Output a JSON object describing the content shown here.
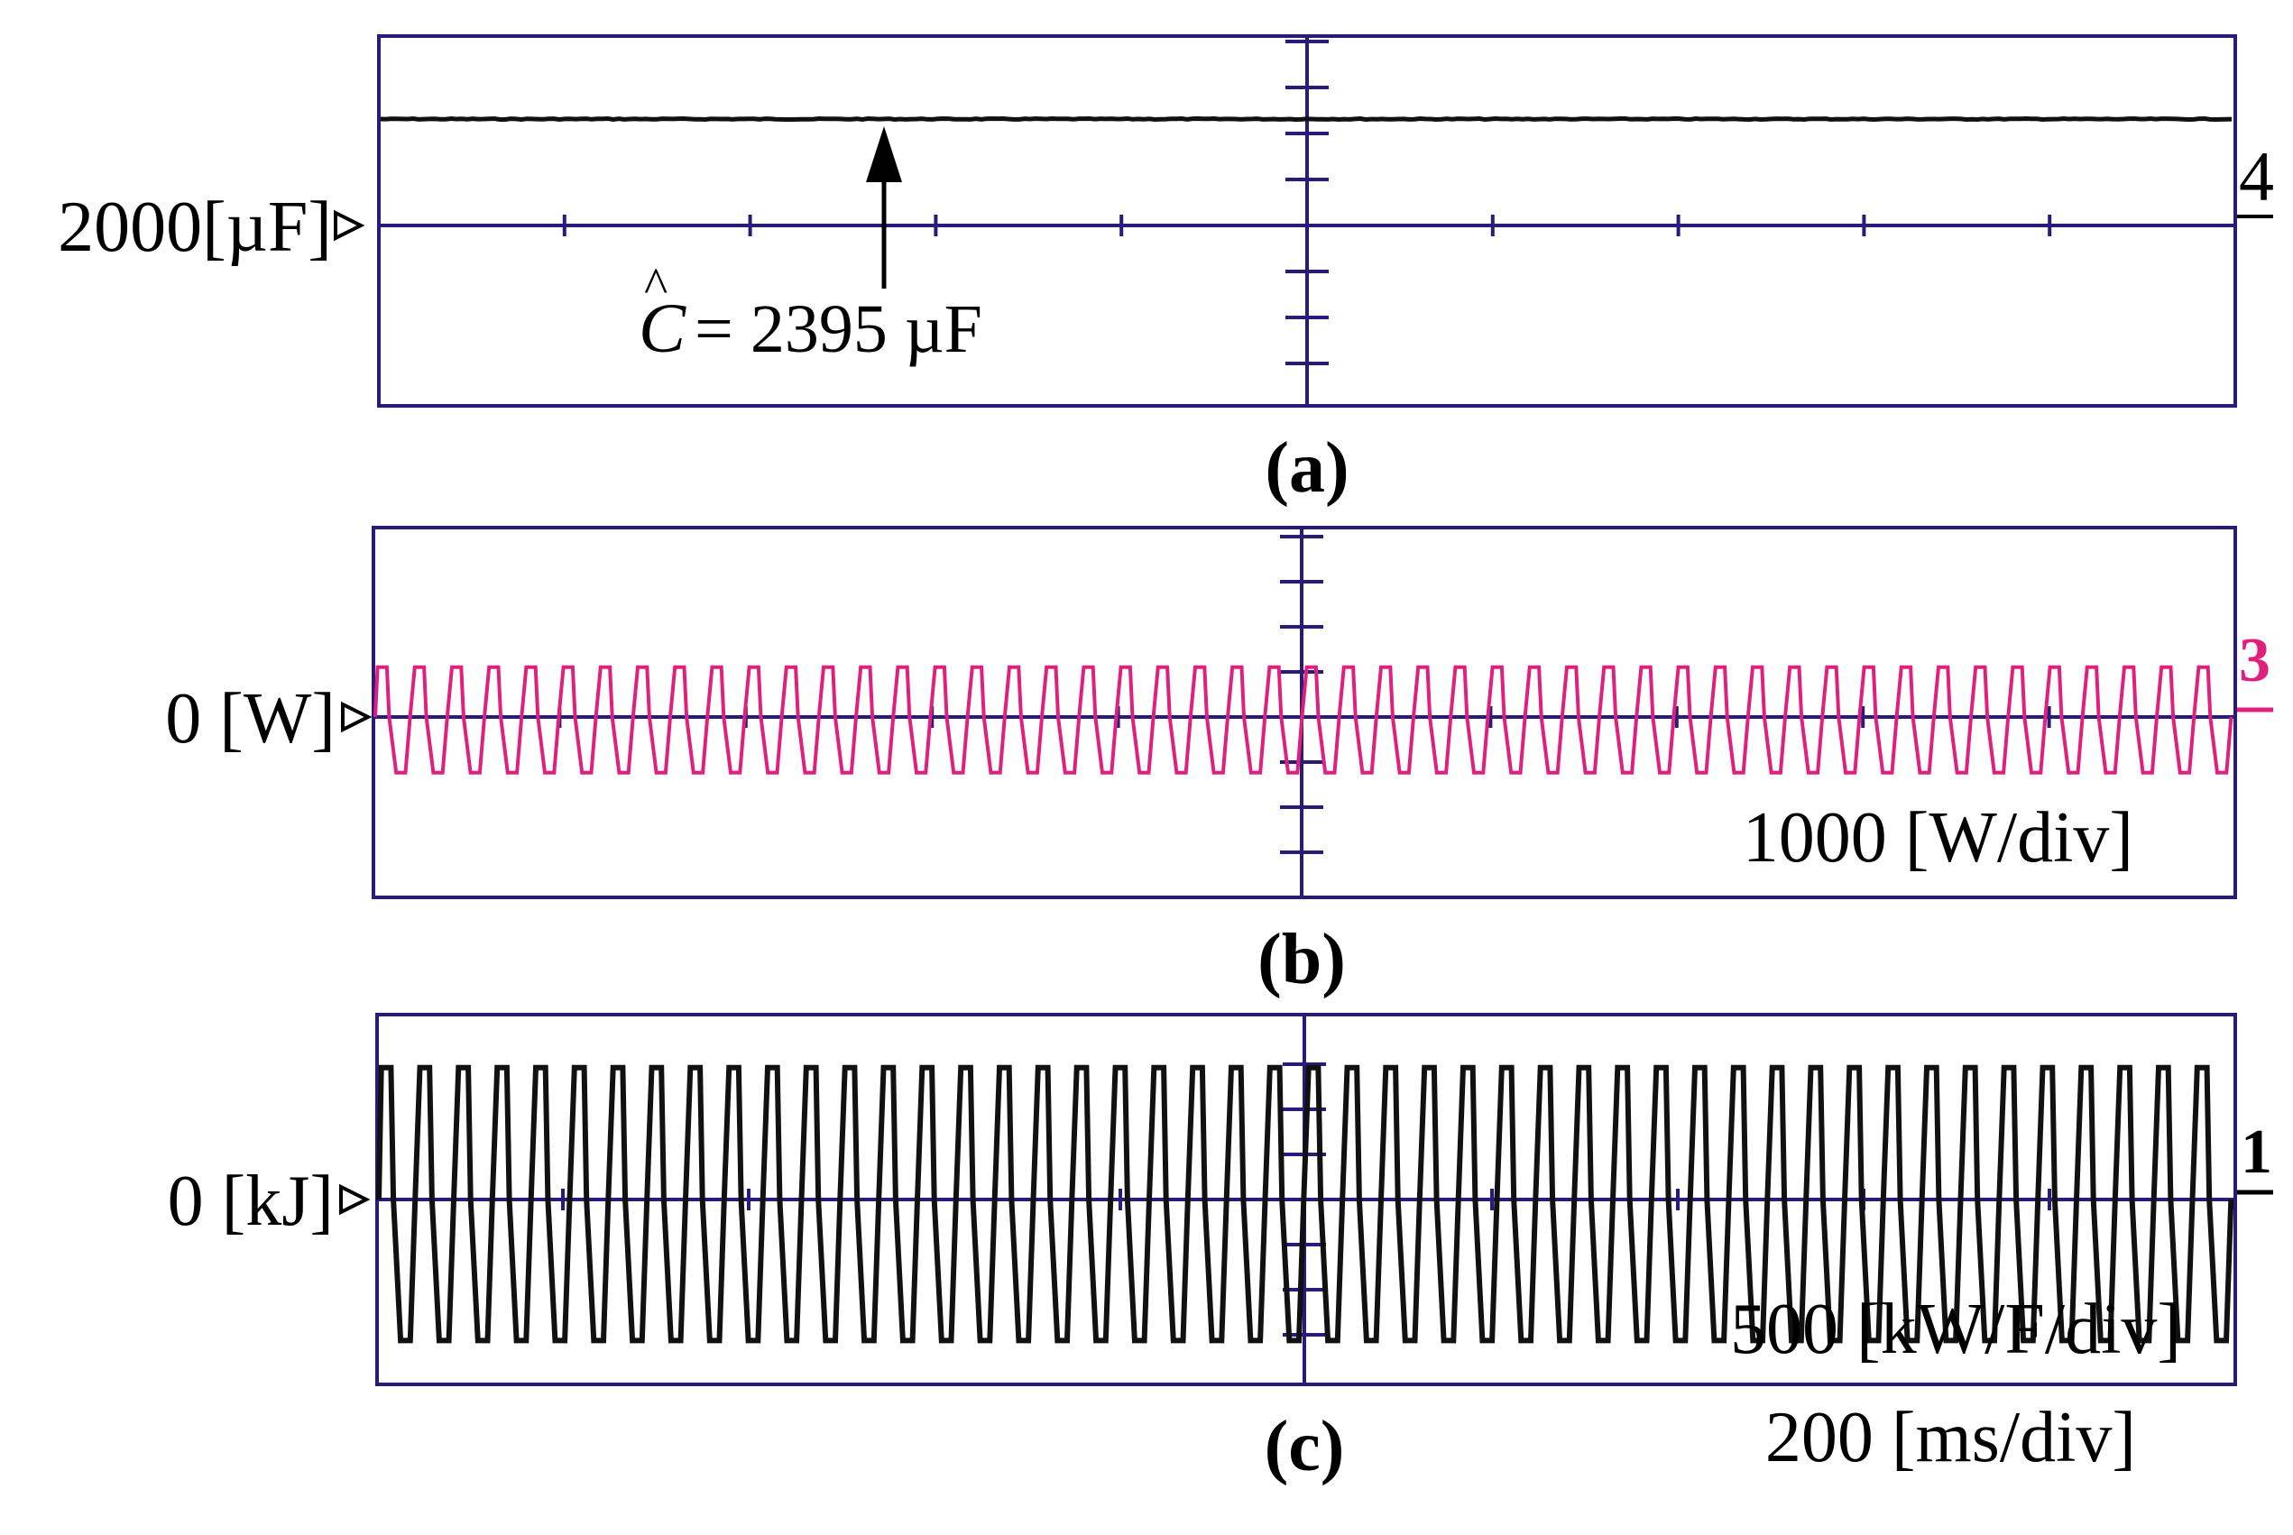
{
  "chart_data": [
    {
      "type": "line",
      "panel": "a",
      "caption": "(a)",
      "ref_label": "2000[µF]",
      "ref_value": 2000,
      "unit": "µF",
      "channel": "4",
      "annotation": {
        "symbol": "C",
        "text": "= 2395 µF",
        "value": 2395
      },
      "series": [
        {
          "level": 2395,
          "noise": 6,
          "color": "#111111"
        }
      ]
    },
    {
      "type": "line",
      "panel": "b",
      "caption": "(b)",
      "ref_label": "0 [W]",
      "ref_value": 0,
      "unit": "W",
      "channel": "3",
      "scale_label": "1000 [W/div]",
      "scale_per_div": 1000,
      "series": [
        {
          "waveform": "square-ripple",
          "cycles": 50,
          "amp_high": 850,
          "amp_low": -950,
          "color": "#e0207f"
        }
      ]
    },
    {
      "type": "line",
      "panel": "c",
      "caption": "(c)",
      "ref_label": "0 [kJ]",
      "ref_value": 0,
      "unit": "kJ",
      "channel": "1",
      "scale_label": "500 [kW/F/div]",
      "scale_per_div": 500,
      "time_label": "200 [ms/div]",
      "time_per_div_ms": 200,
      "series": [
        {
          "waveform": "square-ripple",
          "cycles": 48,
          "amp_high": 430,
          "amp_low": -460,
          "color": "#111111"
        }
      ]
    }
  ],
  "colors": {
    "frame": "#2a1b7a",
    "trace_b": "#e0207f",
    "trace_c": "#111111"
  }
}
